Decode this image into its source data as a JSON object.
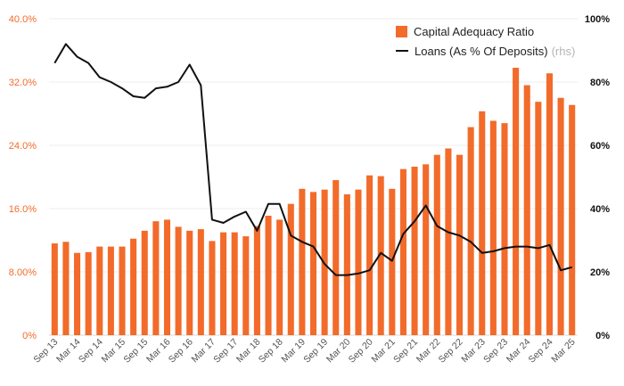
{
  "chart_data": {
    "type": "bar",
    "title": "",
    "xlabel": "",
    "ylabel": "",
    "categories": [
      "Sep 13",
      "Dec 13",
      "Mar 14",
      "Jun 14",
      "Sep 14",
      "Dec 14",
      "Mar 15",
      "Jun 15",
      "Sep 15",
      "Dec 15",
      "Mar 16",
      "Jun 16",
      "Sep 16",
      "Dec 16",
      "Mar 17",
      "Jun 17",
      "Sep 17",
      "Dec 17",
      "Mar 18",
      "Jun 18",
      "Sep 18",
      "Dec 18",
      "Mar 19",
      "Jun 19",
      "Sep 19",
      "Dec 19",
      "Mar 20",
      "Jun 20",
      "Sep 20",
      "Dec 20",
      "Mar 21",
      "Jun 21",
      "Sep 21",
      "Dec 21",
      "Mar 22",
      "Jun 22",
      "Sep 22",
      "Dec 22",
      "Mar 23",
      "Jun 23",
      "Sep 23",
      "Dec 23",
      "Mar 24",
      "Jun 24",
      "Sep 24",
      "Dec 24",
      "Mar 25"
    ],
    "x_tick_labels": [
      "Sep 13",
      "Mar 14",
      "Sep 14",
      "Mar 15",
      "Sep 15",
      "Mar 16",
      "Sep 16",
      "Mar 17",
      "Sep 17",
      "Mar 18",
      "Sep 18",
      "Mar 19",
      "Sep 19",
      "Mar 20",
      "Sep 20",
      "Mar 21",
      "Sep 21",
      "Mar 22",
      "Sep 22",
      "Mar 23",
      "Sep 23",
      "Mar 24",
      "Sep 24",
      "Mar 25"
    ],
    "y_left": {
      "ylim": [
        0,
        40
      ],
      "ticks": [
        0,
        8,
        16,
        24,
        32,
        40
      ],
      "tick_labels": [
        "0%",
        "8.00%",
        "16.0%",
        "24.0%",
        "32.0%",
        "40.0%"
      ],
      "tick_color": "#f26b2a"
    },
    "y_right": {
      "ylim": [
        0,
        100
      ],
      "ticks": [
        0,
        20,
        40,
        60,
        80,
        100
      ],
      "tick_labels": [
        "0%",
        "20%",
        "40%",
        "60%",
        "80%",
        "100%"
      ],
      "tick_color": "#111111"
    },
    "grid": true,
    "legend_position": "top-right",
    "series": [
      {
        "name": "Capital Adequacy Ratio",
        "type": "bar",
        "axis": "left",
        "color": "#f26b2a",
        "values": [
          11.6,
          11.8,
          10.4,
          10.5,
          11.2,
          11.2,
          11.2,
          12.2,
          13.2,
          14.4,
          14.6,
          13.7,
          13.2,
          13.4,
          11.9,
          13.0,
          13.0,
          12.5,
          13.8,
          15.1,
          14.6,
          16.6,
          18.5,
          18.1,
          18.4,
          19.6,
          17.8,
          18.4,
          20.2,
          20.1,
          18.5,
          21.0,
          21.3,
          21.6,
          22.8,
          23.6,
          22.8,
          26.3,
          28.3,
          27.1,
          26.8,
          33.8,
          31.6,
          29.5,
          33.1,
          30.0,
          29.1
        ]
      },
      {
        "name": "Loans (As % Of Deposits)",
        "legend_suffix": "(rhs)",
        "type": "line",
        "axis": "right",
        "color": "#111111",
        "values": [
          86,
          92,
          88,
          86,
          81.5,
          80,
          78,
          75.5,
          75,
          78,
          78.5,
          80,
          85.5,
          79,
          36.5,
          35.5,
          37.5,
          39,
          33,
          41.5,
          41.5,
          31.5,
          29.5,
          28,
          22.5,
          19,
          19,
          19.5,
          20.5,
          26,
          23.5,
          32,
          36,
          41,
          34.5,
          32.5,
          31.5,
          29.5,
          26,
          26.5,
          27.5,
          28,
          28,
          27.5,
          28.5,
          20.5,
          21.5
        ]
      }
    ]
  }
}
